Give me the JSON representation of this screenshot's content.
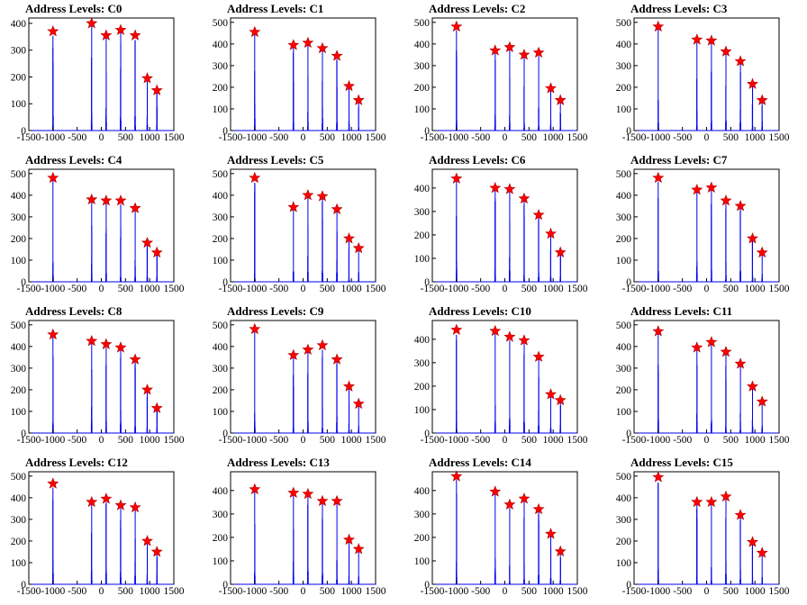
{
  "colors": {
    "histogram": "#0000ee",
    "peak_marker": "#ff0000",
    "axes": "#000000"
  },
  "chart_data": [
    {
      "type": "bar",
      "title": "Address Levels: C0",
      "xlim": [
        -1500,
        1500
      ],
      "ylim": [
        0,
        420
      ],
      "xticks": [
        "-1500",
        "-1000",
        "-500",
        "0",
        "500",
        "1000",
        "1500"
      ],
      "yticks": [
        "0",
        "100",
        "200",
        "300",
        "400"
      ],
      "peaks": [
        {
          "x": -1000,
          "y": 370
        },
        {
          "x": -200,
          "y": 400
        },
        {
          "x": 100,
          "y": 355
        },
        {
          "x": 400,
          "y": 375
        },
        {
          "x": 700,
          "y": 355
        },
        {
          "x": 950,
          "y": 195
        },
        {
          "x": 1150,
          "y": 150
        }
      ]
    },
    {
      "type": "bar",
      "title": "Address Levels: C1",
      "xlim": [
        -1500,
        1500
      ],
      "ylim": [
        0,
        520
      ],
      "xticks": [
        "-1500",
        "-1000",
        "-500",
        "0",
        "500",
        "1000",
        "1500"
      ],
      "yticks": [
        "0",
        "100",
        "200",
        "300",
        "400",
        "500"
      ],
      "peaks": [
        {
          "x": -1000,
          "y": 455
        },
        {
          "x": -200,
          "y": 395
        },
        {
          "x": 100,
          "y": 405
        },
        {
          "x": 400,
          "y": 380
        },
        {
          "x": 700,
          "y": 345
        },
        {
          "x": 950,
          "y": 205
        },
        {
          "x": 1150,
          "y": 140
        }
      ]
    },
    {
      "type": "bar",
      "title": "Address Levels: C2",
      "xlim": [
        -1500,
        1500
      ],
      "ylim": [
        0,
        520
      ],
      "xticks": [
        "-1500",
        "-1000",
        "-500",
        "0",
        "500",
        "1000",
        "1500"
      ],
      "yticks": [
        "0",
        "100",
        "200",
        "300",
        "400",
        "500"
      ],
      "peaks": [
        {
          "x": -1000,
          "y": 480
        },
        {
          "x": -200,
          "y": 370
        },
        {
          "x": 100,
          "y": 385
        },
        {
          "x": 400,
          "y": 350
        },
        {
          "x": 700,
          "y": 360
        },
        {
          "x": 950,
          "y": 195
        },
        {
          "x": 1150,
          "y": 140
        }
      ]
    },
    {
      "type": "bar",
      "title": "Address Levels: C3",
      "xlim": [
        -1500,
        1500
      ],
      "ylim": [
        0,
        520
      ],
      "xticks": [
        "-1500",
        "-1000",
        "-500",
        "0",
        "500",
        "1000",
        "1500"
      ],
      "yticks": [
        "0",
        "100",
        "200",
        "300",
        "400",
        "500"
      ],
      "peaks": [
        {
          "x": -1000,
          "y": 480
        },
        {
          "x": -200,
          "y": 420
        },
        {
          "x": 100,
          "y": 415
        },
        {
          "x": 400,
          "y": 365
        },
        {
          "x": 700,
          "y": 320
        },
        {
          "x": 950,
          "y": 215
        },
        {
          "x": 1150,
          "y": 140
        }
      ]
    },
    {
      "type": "bar",
      "title": "Address Levels: C4",
      "xlim": [
        -1500,
        1500
      ],
      "ylim": [
        0,
        520
      ],
      "xticks": [
        "-1500",
        "-1000",
        "-500",
        "0",
        "500",
        "1000",
        "1500"
      ],
      "yticks": [
        "0",
        "100",
        "200",
        "300",
        "400",
        "500"
      ],
      "peaks": [
        {
          "x": -1000,
          "y": 480
        },
        {
          "x": -200,
          "y": 380
        },
        {
          "x": 100,
          "y": 375
        },
        {
          "x": 400,
          "y": 375
        },
        {
          "x": 700,
          "y": 340
        },
        {
          "x": 950,
          "y": 180
        },
        {
          "x": 1150,
          "y": 135
        }
      ]
    },
    {
      "type": "bar",
      "title": "Address Levels: C5",
      "xlim": [
        -1500,
        1500
      ],
      "ylim": [
        0,
        520
      ],
      "xticks": [
        "-1500",
        "-1000",
        "-500",
        "0",
        "500",
        "1000",
        "1500"
      ],
      "yticks": [
        "0",
        "100",
        "200",
        "300",
        "400",
        "500"
      ],
      "peaks": [
        {
          "x": -1000,
          "y": 480
        },
        {
          "x": -200,
          "y": 345
        },
        {
          "x": 100,
          "y": 400
        },
        {
          "x": 400,
          "y": 395
        },
        {
          "x": 700,
          "y": 335
        },
        {
          "x": 950,
          "y": 200
        },
        {
          "x": 1150,
          "y": 155
        }
      ]
    },
    {
      "type": "bar",
      "title": "Address Levels: C6",
      "xlim": [
        -1500,
        1500
      ],
      "ylim": [
        0,
        480
      ],
      "xticks": [
        "-1500",
        "-1000",
        "-500",
        "0",
        "500",
        "1000",
        "1500"
      ],
      "yticks": [
        "0",
        "100",
        "200",
        "300",
        "400"
      ],
      "peaks": [
        {
          "x": -1000,
          "y": 440
        },
        {
          "x": -200,
          "y": 400
        },
        {
          "x": 100,
          "y": 395
        },
        {
          "x": 400,
          "y": 355
        },
        {
          "x": 700,
          "y": 285
        },
        {
          "x": 950,
          "y": 205
        },
        {
          "x": 1150,
          "y": 125
        }
      ]
    },
    {
      "type": "bar",
      "title": "Address Levels: C7",
      "xlim": [
        -1500,
        1500
      ],
      "ylim": [
        0,
        520
      ],
      "xticks": [
        "-1500",
        "-1000",
        "-500",
        "0",
        "500",
        "1000",
        "1500"
      ],
      "yticks": [
        "0",
        "100",
        "200",
        "300",
        "400",
        "500"
      ],
      "peaks": [
        {
          "x": -1000,
          "y": 480
        },
        {
          "x": -200,
          "y": 425
        },
        {
          "x": 100,
          "y": 435
        },
        {
          "x": 400,
          "y": 375
        },
        {
          "x": 700,
          "y": 350
        },
        {
          "x": 950,
          "y": 200
        },
        {
          "x": 1150,
          "y": 135
        }
      ]
    },
    {
      "type": "bar",
      "title": "Address Levels: C8",
      "xlim": [
        -1500,
        1500
      ],
      "ylim": [
        0,
        520
      ],
      "xticks": [
        "-1500",
        "-1000",
        "-500",
        "0",
        "500",
        "1000",
        "1500"
      ],
      "yticks": [
        "0",
        "100",
        "200",
        "300",
        "400",
        "500"
      ],
      "peaks": [
        {
          "x": -1000,
          "y": 455
        },
        {
          "x": -200,
          "y": 425
        },
        {
          "x": 100,
          "y": 410
        },
        {
          "x": 400,
          "y": 395
        },
        {
          "x": 700,
          "y": 340
        },
        {
          "x": 950,
          "y": 200
        },
        {
          "x": 1150,
          "y": 115
        }
      ]
    },
    {
      "type": "bar",
      "title": "Address Levels: C9",
      "xlim": [
        -1500,
        1500
      ],
      "ylim": [
        0,
        520
      ],
      "xticks": [
        "-1500",
        "-1000",
        "-500",
        "0",
        "500",
        "1000",
        "1500"
      ],
      "yticks": [
        "0",
        "100",
        "200",
        "300",
        "400",
        "500"
      ],
      "peaks": [
        {
          "x": -1000,
          "y": 480
        },
        {
          "x": -200,
          "y": 360
        },
        {
          "x": 100,
          "y": 385
        },
        {
          "x": 400,
          "y": 405
        },
        {
          "x": 700,
          "y": 340
        },
        {
          "x": 950,
          "y": 215
        },
        {
          "x": 1150,
          "y": 135
        }
      ]
    },
    {
      "type": "bar",
      "title": "Address Levels: C10",
      "xlim": [
        -1500,
        1500
      ],
      "ylim": [
        0,
        480
      ],
      "xticks": [
        "-1500",
        "-1000",
        "-500",
        "0",
        "500",
        "1000",
        "1500"
      ],
      "yticks": [
        "0",
        "100",
        "200",
        "300",
        "400"
      ],
      "peaks": [
        {
          "x": -1000,
          "y": 440
        },
        {
          "x": -200,
          "y": 435
        },
        {
          "x": 100,
          "y": 410
        },
        {
          "x": 400,
          "y": 395
        },
        {
          "x": 700,
          "y": 325
        },
        {
          "x": 950,
          "y": 165
        },
        {
          "x": 1150,
          "y": 140
        }
      ]
    },
    {
      "type": "bar",
      "title": "Address Levels: C11",
      "xlim": [
        -1500,
        1500
      ],
      "ylim": [
        0,
        520
      ],
      "xticks": [
        "-1500",
        "-1000",
        "-500",
        "0",
        "500",
        "1000",
        "1500"
      ],
      "yticks": [
        "0",
        "100",
        "200",
        "300",
        "400",
        "500"
      ],
      "peaks": [
        {
          "x": -1000,
          "y": 470
        },
        {
          "x": -200,
          "y": 395
        },
        {
          "x": 100,
          "y": 420
        },
        {
          "x": 400,
          "y": 375
        },
        {
          "x": 700,
          "y": 320
        },
        {
          "x": 950,
          "y": 215
        },
        {
          "x": 1150,
          "y": 145
        }
      ]
    },
    {
      "type": "bar",
      "title": "Address Levels: C12",
      "xlim": [
        -1500,
        1500
      ],
      "ylim": [
        0,
        520
      ],
      "xticks": [
        "-1500",
        "-1000",
        "-500",
        "0",
        "500",
        "1000",
        "1500"
      ],
      "yticks": [
        "0",
        "100",
        "200",
        "300",
        "400",
        "500"
      ],
      "peaks": [
        {
          "x": -1000,
          "y": 465
        },
        {
          "x": -200,
          "y": 380
        },
        {
          "x": 100,
          "y": 395
        },
        {
          "x": 400,
          "y": 365
        },
        {
          "x": 700,
          "y": 355
        },
        {
          "x": 950,
          "y": 200
        },
        {
          "x": 1150,
          "y": 150
        }
      ]
    },
    {
      "type": "bar",
      "title": "Address Levels: C13",
      "xlim": [
        -1500,
        1500
      ],
      "ylim": [
        0,
        480
      ],
      "xticks": [
        "-1500",
        "-1000",
        "-500",
        "0",
        "500",
        "1000",
        "1500"
      ],
      "yticks": [
        "0",
        "100",
        "200",
        "300",
        "400"
      ],
      "peaks": [
        {
          "x": -1000,
          "y": 405
        },
        {
          "x": -200,
          "y": 390
        },
        {
          "x": 100,
          "y": 385
        },
        {
          "x": 400,
          "y": 355
        },
        {
          "x": 700,
          "y": 355
        },
        {
          "x": 950,
          "y": 190
        },
        {
          "x": 1150,
          "y": 150
        }
      ]
    },
    {
      "type": "bar",
      "title": "Address Levels: C14",
      "xlim": [
        -1500,
        1500
      ],
      "ylim": [
        0,
        480
      ],
      "xticks": [
        "-1500",
        "-1000",
        "-500",
        "0",
        "500",
        "1000",
        "1500"
      ],
      "yticks": [
        "0",
        "100",
        "200",
        "300",
        "400"
      ],
      "peaks": [
        {
          "x": -1000,
          "y": 460
        },
        {
          "x": -200,
          "y": 395
        },
        {
          "x": 100,
          "y": 340
        },
        {
          "x": 400,
          "y": 365
        },
        {
          "x": 700,
          "y": 320
        },
        {
          "x": 950,
          "y": 215
        },
        {
          "x": 1150,
          "y": 140
        }
      ]
    },
    {
      "type": "bar",
      "title": "Address Levels: C15",
      "xlim": [
        -1500,
        1500
      ],
      "ylim": [
        0,
        520
      ],
      "xticks": [
        "-1500",
        "-1000",
        "-500",
        "0",
        "500",
        "1000",
        "1500"
      ],
      "yticks": [
        "0",
        "100",
        "200",
        "300",
        "400",
        "500"
      ],
      "peaks": [
        {
          "x": -1000,
          "y": 495
        },
        {
          "x": -200,
          "y": 380
        },
        {
          "x": 100,
          "y": 380
        },
        {
          "x": 400,
          "y": 405
        },
        {
          "x": 700,
          "y": 320
        },
        {
          "x": 950,
          "y": 195
        },
        {
          "x": 1150,
          "y": 145
        }
      ]
    }
  ]
}
